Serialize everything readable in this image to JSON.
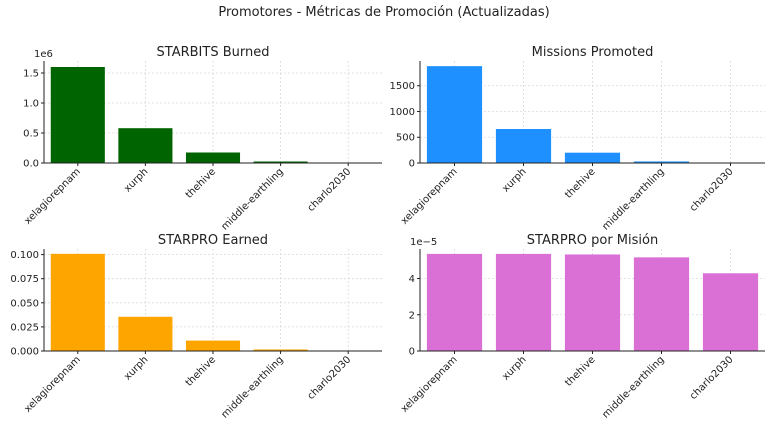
{
  "figure_title": "Promotores - Métricas de Promoción (Actualizadas)",
  "chart_data": [
    {
      "type": "bar",
      "title": "STARBITS Burned",
      "categories": [
        "xelagiorepnam",
        "xurph",
        "thehive",
        "middle-earthling",
        "charlo2030"
      ],
      "values": [
        1600000,
        580000,
        175000,
        25000,
        3000
      ],
      "ylim": [
        0,
        1700000
      ],
      "yticks": [
        0,
        500000,
        1000000,
        1500000
      ],
      "ytick_labels": [
        "0.0",
        "0.5",
        "1.0",
        "1.5"
      ],
      "offset_label": "1e6",
      "color": "#006400",
      "grid": true,
      "xlabel": "",
      "ylabel": ""
    },
    {
      "type": "bar",
      "title": "Missions Promoted",
      "categories": [
        "xelagiorepnam",
        "xurph",
        "thehive",
        "middle-earthling",
        "charlo2030"
      ],
      "values": [
        1880,
        660,
        200,
        30,
        5
      ],
      "ylim": [
        0,
        1980
      ],
      "yticks": [
        0,
        500,
        1000,
        1500
      ],
      "ytick_labels": [
        "0",
        "500",
        "1000",
        "1500"
      ],
      "offset_label": "",
      "color": "#1E90FF",
      "grid": true,
      "xlabel": "",
      "ylabel": ""
    },
    {
      "type": "bar",
      "title": "STARPRO Earned",
      "categories": [
        "xelagiorepnam",
        "xurph",
        "thehive",
        "middle-earthling",
        "charlo2030"
      ],
      "values": [
        0.1008,
        0.0355,
        0.0108,
        0.0016,
        0.0002
      ],
      "ylim": [
        0,
        0.1058
      ],
      "yticks": [
        0,
        0.025,
        0.05,
        0.075,
        0.1
      ],
      "ytick_labels": [
        "0.000",
        "0.025",
        "0.050",
        "0.075",
        "0.100"
      ],
      "offset_label": "",
      "color": "#FFA500",
      "grid": true,
      "xlabel": "",
      "ylabel": ""
    },
    {
      "type": "bar",
      "title": "STARPRO por Misión",
      "categories": [
        "xelagiorepnam",
        "xurph",
        "thehive",
        "middle-earthling",
        "charlo2030"
      ],
      "values": [
        5.36e-05,
        5.36e-05,
        5.33e-05,
        5.17e-05,
        4.29e-05
      ],
      "ylim": [
        0,
        5.63e-05
      ],
      "yticks": [
        0,
        2e-05,
        4e-05
      ],
      "ytick_labels": [
        "0",
        "2",
        "4"
      ],
      "offset_label": "1e−5",
      "color": "#DA70D6",
      "grid": true,
      "xlabel": "",
      "ylabel": ""
    }
  ]
}
